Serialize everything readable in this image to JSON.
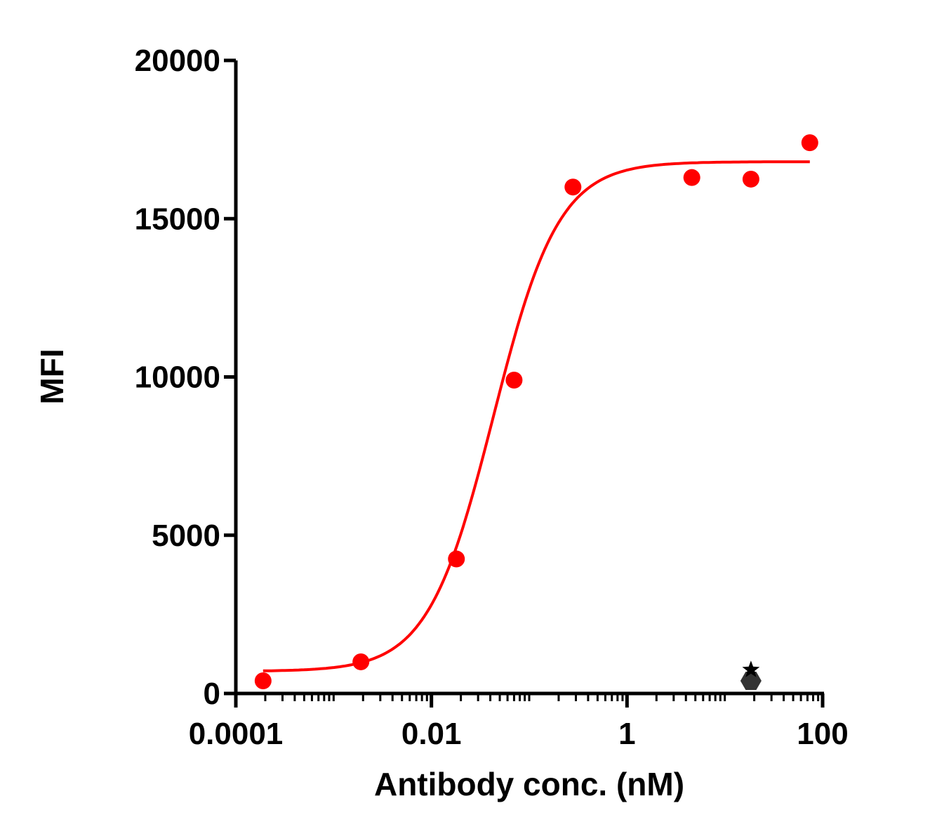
{
  "chart_data": {
    "type": "scatter",
    "xlabel": "Antibody conc. (nM)",
    "ylabel": "MFI",
    "xscale": "log",
    "xlim": [
      0.0001,
      100
    ],
    "ylim": [
      0,
      20000
    ],
    "x_ticks": [
      "0.0001",
      "0.01",
      "1",
      "100"
    ],
    "y_ticks": [
      "0",
      "5000",
      "10000",
      "15000",
      "20000"
    ],
    "grid": false,
    "legend": "none",
    "series": [
      {
        "marker": "circle",
        "color": "#ff0000",
        "x": [
          0.00019,
          0.0019,
          0.018,
          0.07,
          0.28,
          4.6,
          18.5,
          74
        ],
        "y": [
          400,
          1000,
          4250,
          9900,
          16000,
          16300,
          16250,
          17400
        ]
      },
      {
        "marker": "hexagon",
        "color": "#333333",
        "x": [
          18.5
        ],
        "y": [
          400
        ]
      },
      {
        "marker": "star",
        "color": "#000000",
        "x": [
          18.5
        ],
        "y": [
          750
        ]
      }
    ],
    "fit": {
      "type": "4PL",
      "color": "#ff0000",
      "bottom": 700,
      "top": 16800,
      "ec50": 0.043,
      "hill": 1.3,
      "x_range": [
        0.00019,
        74
      ]
    }
  }
}
